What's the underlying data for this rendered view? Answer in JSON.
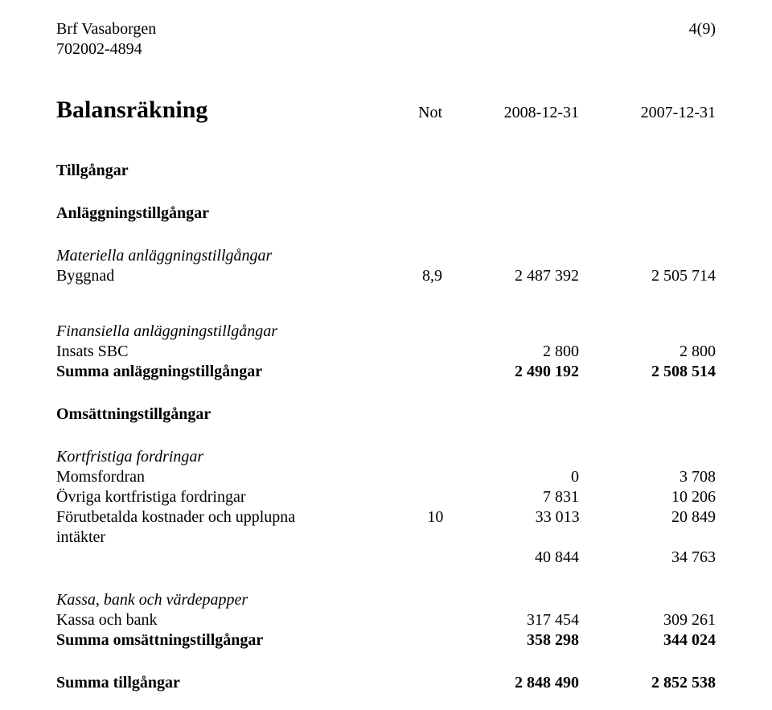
{
  "header": {
    "org_name": "Brf Vasaborgen",
    "org_no": "702002-4894",
    "page_no": "4(9)"
  },
  "title": "Balansräkning",
  "columns": {
    "note_label": "Not",
    "col_a": "2008-12-31",
    "col_b": "2007-12-31"
  },
  "sections": {
    "tillgangar": "Tillgångar",
    "anlaggning_hdr": "Anläggningstillgångar",
    "materiella_hdr": "Materiella anläggningstillgångar",
    "byggnad": {
      "label": "Byggnad",
      "note": "8,9",
      "a": "2 487 392",
      "b": "2 505 714"
    },
    "finansiella_hdr": "Finansiella anläggningstillgångar",
    "insats_sbc": {
      "label": "Insats SBC",
      "a": "2 800",
      "b": "2 800"
    },
    "summa_anl": {
      "label": "Summa anläggningstillgångar",
      "a": "2 490 192",
      "b": "2 508 514"
    },
    "omsattning_hdr": "Omsättningstillgångar",
    "kortfristiga_hdr": "Kortfristiga fordringar",
    "momsfordran": {
      "label": "Momsfordran",
      "a": "0",
      "b": "3 708"
    },
    "ovriga": {
      "label": "Övriga kortfristiga fordringar",
      "a": "7 831",
      "b": "10 206"
    },
    "forutbetalda": {
      "label": "Förutbetalda kostnader och upplupna intäkter",
      "note": "10",
      "a": "33 013",
      "b": "20 849"
    },
    "subtotal_fordringar": {
      "a": "40 844",
      "b": "34 763"
    },
    "kassa_hdr": "Kassa, bank och värdepapper",
    "kassa_bank": {
      "label": "Kassa och bank",
      "a": "317 454",
      "b": "309 261"
    },
    "summa_oms": {
      "label": "Summa omsättningstillgångar",
      "a": "358 298",
      "b": "344 024"
    },
    "summa_tillg": {
      "label": "Summa tillgångar",
      "a": "2 848 490",
      "b": "2 852 538"
    }
  }
}
